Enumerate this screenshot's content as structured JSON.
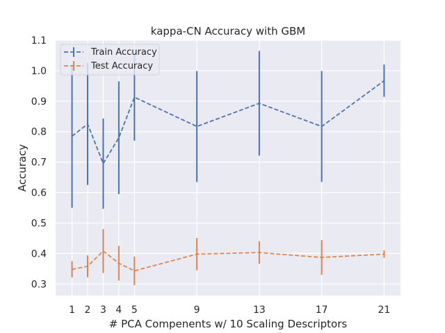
{
  "chart_data": {
    "type": "line",
    "title": "kappa-CN Accuracy with GBM",
    "xlabel": "# PCA Compenents w/ 10 Scaling Descriptors",
    "ylabel": "Accuracy",
    "x": [
      1,
      2,
      3,
      4,
      5,
      9,
      13,
      17,
      21
    ],
    "xticks": [
      "1",
      "2",
      "3",
      "4",
      "5",
      "9",
      "13",
      "17",
      "21"
    ],
    "xlim": [
      -0.05,
      22.05
    ],
    "ylim": [
      0.262,
      1.1
    ],
    "yticks": [
      "0.3",
      "0.4",
      "0.5",
      "0.6",
      "0.7",
      "0.8",
      "0.9",
      "1.0",
      "1.1"
    ],
    "grid": true,
    "background": "#eaeaf2",
    "legend_position": "top-left",
    "series": [
      {
        "name": "Train Accuracy",
        "color": "#4c72b0",
        "linestyle": "dashed",
        "values": [
          0.785,
          0.825,
          0.695,
          0.78,
          0.913,
          0.817,
          0.893,
          0.817,
          0.967
        ],
        "errors": [
          0.235,
          0.2,
          0.148,
          0.185,
          0.143,
          0.182,
          0.172,
          0.182,
          0.053
        ]
      },
      {
        "name": "Test Accuracy",
        "color": "#dd8452",
        "linestyle": "dashed",
        "values": [
          0.348,
          0.358,
          0.408,
          0.368,
          0.343,
          0.398,
          0.403,
          0.387,
          0.398
        ],
        "errors": [
          0.027,
          0.036,
          0.072,
          0.057,
          0.047,
          0.053,
          0.037,
          0.057,
          0.012
        ]
      }
    ]
  }
}
